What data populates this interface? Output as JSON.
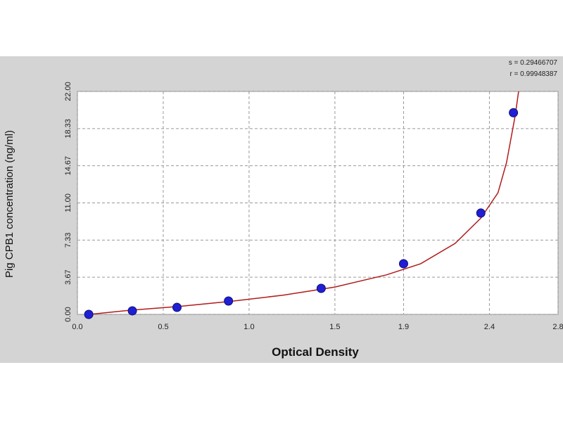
{
  "chart_data": {
    "type": "scatter",
    "x_label": "Optical Density",
    "y_label": "Pig CPB1 concentration (ng/ml)",
    "annotations": [
      "s = 0.29466707",
      "r = 0.99948387"
    ],
    "xlim": [
      0,
      2.8
    ],
    "xticks": [
      {
        "value": 0,
        "label": "0.0"
      },
      0.5,
      {
        "value": 1,
        "label": "1.0"
      },
      1.5,
      1.9,
      2.4,
      2.8
    ],
    "ylim": [
      0,
      22
    ],
    "yticks": [
      {
        "value": 0,
        "label": "0.00"
      },
      3.67,
      7.33,
      {
        "value": 11,
        "label": "11.00"
      },
      14.67,
      18.33,
      {
        "value": 22,
        "label": "22.00"
      }
    ],
    "grid": true,
    "series": [
      {
        "mode": "markers",
        "color": "#1f1fd6",
        "x": [
          0.066,
          0.32,
          0.58,
          0.88,
          1.42,
          1.9,
          2.35,
          2.54
        ],
        "values": [
          0,
          0.35,
          0.69,
          1.32,
          2.57,
          5.0,
          10.0,
          19.9
        ]
      },
      {
        "mode": "line",
        "color": "#b01c1c",
        "x": [
          0.07,
          0.3,
          0.6,
          0.9,
          1.2,
          1.5,
          1.8,
          2.0,
          2.2,
          2.35,
          2.45,
          2.5,
          2.55,
          2.57
        ],
        "values": [
          0,
          0.4,
          0.8,
          1.3,
          1.9,
          2.7,
          3.9,
          5.0,
          7.0,
          9.5,
          12.0,
          15.0,
          19.6,
          22.0
        ]
      }
    ]
  }
}
